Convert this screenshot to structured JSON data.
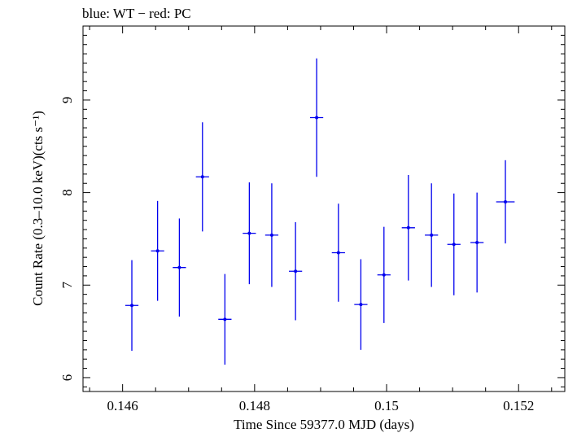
{
  "chart_data": {
    "type": "scatter",
    "legend_text": "blue: WT − red: PC",
    "legend_position": "top-left",
    "xlabel": "Time Since 59377.0 MJD (days)",
    "ylabel": "Count Rate (0.3–10.0 keV)(cts s⁻¹)",
    "xlim": [
      0.1454,
      0.1527
    ],
    "ylim": [
      5.85,
      9.8
    ],
    "grid": false,
    "x_ticks": [
      {
        "value": 0.146,
        "label": "0.146"
      },
      {
        "value": 0.148,
        "label": "0.148"
      },
      {
        "value": 0.15,
        "label": "0.15"
      },
      {
        "value": 0.152,
        "label": "0.152"
      }
    ],
    "y_ticks": [
      {
        "value": 6,
        "label": "6"
      },
      {
        "value": 7,
        "label": "7"
      },
      {
        "value": 8,
        "label": "8"
      },
      {
        "value": 9,
        "label": "9"
      }
    ],
    "series": [
      {
        "name": "WT",
        "color": "#0000ee",
        "points": [
          {
            "x": 0.14614,
            "xerr": 0.0001,
            "y": 6.78,
            "yerr": 0.49
          },
          {
            "x": 0.14653,
            "xerr": 0.0001,
            "y": 7.37,
            "yerr": 0.54
          },
          {
            "x": 0.14686,
            "xerr": 0.0001,
            "y": 7.19,
            "yerr": 0.53
          },
          {
            "x": 0.14721,
            "xerr": 0.0001,
            "y": 8.17,
            "yerr": 0.59
          },
          {
            "x": 0.14755,
            "xerr": 0.0001,
            "y": 6.63,
            "yerr": 0.49
          },
          {
            "x": 0.14792,
            "xerr": 0.0001,
            "y": 7.56,
            "yerr": 0.55
          },
          {
            "x": 0.14826,
            "xerr": 0.0001,
            "y": 7.54,
            "yerr": 0.56
          },
          {
            "x": 0.14862,
            "xerr": 0.0001,
            "y": 7.15,
            "yerr": 0.53
          },
          {
            "x": 0.14894,
            "xerr": 0.0001,
            "y": 8.81,
            "yerr": 0.64
          },
          {
            "x": 0.14927,
            "xerr": 0.0001,
            "y": 7.35,
            "yerr": 0.53
          },
          {
            "x": 0.14961,
            "xerr": 0.0001,
            "y": 6.79,
            "yerr": 0.49
          },
          {
            "x": 0.14996,
            "xerr": 0.0001,
            "y": 7.11,
            "yerr": 0.52
          },
          {
            "x": 0.15033,
            "xerr": 0.0001,
            "y": 7.62,
            "yerr": 0.57
          },
          {
            "x": 0.15068,
            "xerr": 0.0001,
            "y": 7.54,
            "yerr": 0.56
          },
          {
            "x": 0.15102,
            "xerr": 0.0001,
            "y": 7.44,
            "yerr": 0.55
          },
          {
            "x": 0.15137,
            "xerr": 0.0001,
            "y": 7.46,
            "yerr": 0.54
          },
          {
            "x": 0.1518,
            "xerr": 0.00014,
            "y": 7.9,
            "yerr": 0.45
          }
        ]
      }
    ]
  }
}
